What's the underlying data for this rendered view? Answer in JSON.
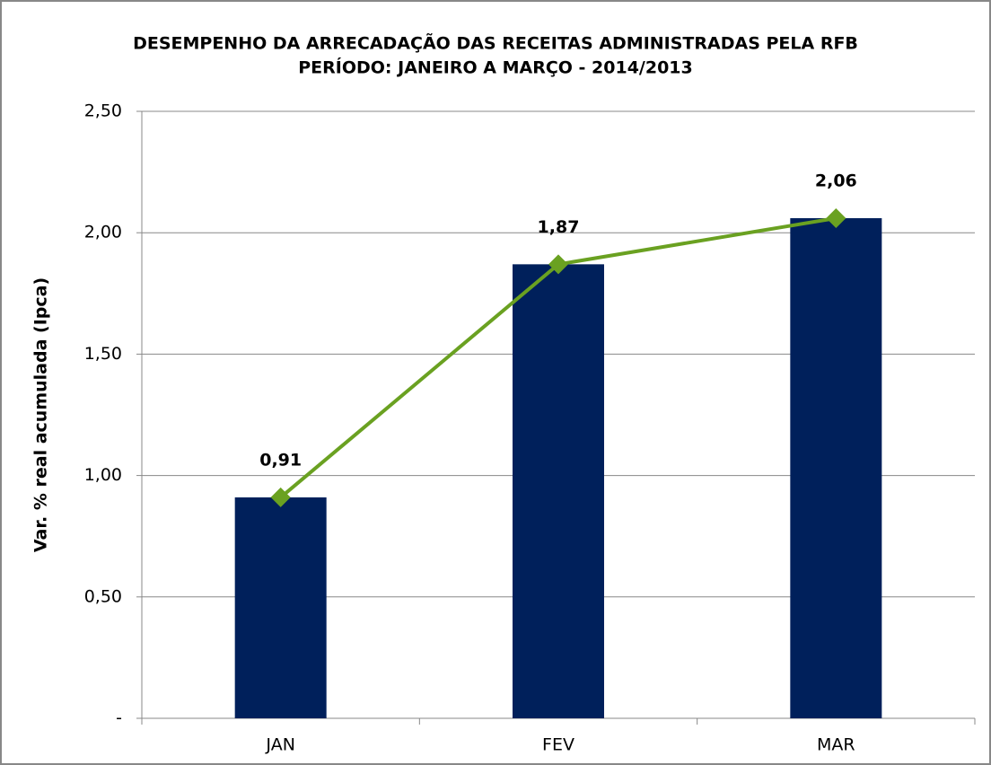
{
  "chart_data": {
    "type": "bar",
    "title": "DESEMPENHO DA ARRECADAÇÃO DAS RECEITAS ADMINISTRADAS PELA RFB",
    "subtitle": "PERÍODO: JANEIRO A MARÇO - 2014/2013",
    "y_label": "Var. % real acumulada (Ipca)",
    "categories": [
      "JAN",
      "FEV",
      "MAR"
    ],
    "series": [
      {
        "type": "bar",
        "color": "#00205b",
        "values": [
          0.91,
          1.87,
          2.06
        ]
      },
      {
        "type": "line",
        "color": "#6aa121",
        "values": [
          0.91,
          1.87,
          2.06
        ],
        "value_labels": [
          "0,91",
          "1,87",
          "2,06"
        ]
      }
    ],
    "ylim": [
      0,
      2.5
    ],
    "yticks": [
      {
        "value": 0,
        "label": "-"
      },
      {
        "value": 0.5,
        "label": "0,50"
      },
      {
        "value": 1,
        "label": "1,00"
      },
      {
        "value": 1.5,
        "label": "1,50"
      },
      {
        "value": 2,
        "label": "2,00"
      },
      {
        "value": 2.5,
        "label": "2,50"
      }
    ],
    "grid": true
  }
}
